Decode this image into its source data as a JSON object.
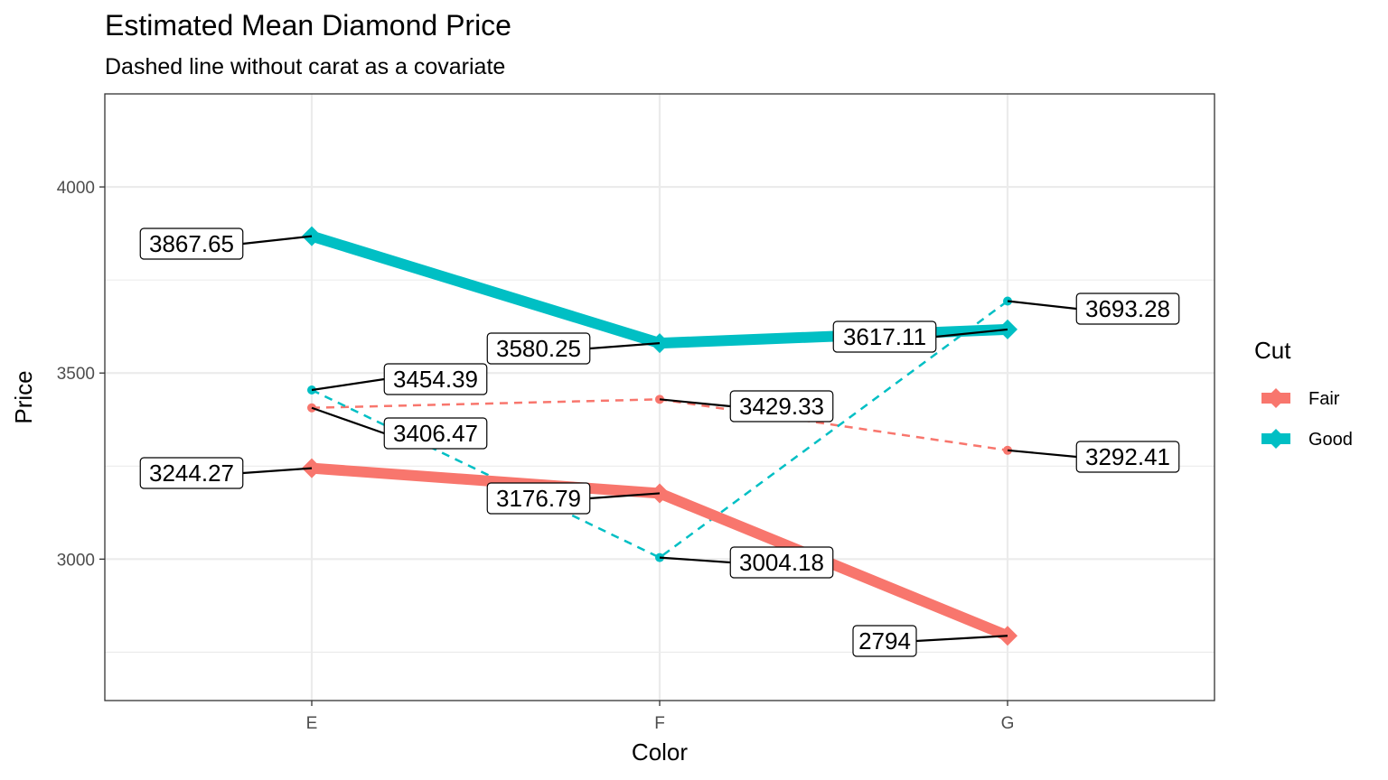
{
  "chart_data": {
    "type": "line",
    "title": "Estimated Mean Diamond Price",
    "subtitle": "Dashed line without carat as a covariate",
    "xlabel": "Color",
    "ylabel": "Price",
    "categories": [
      "E",
      "F",
      "G"
    ],
    "ylim": [
      2620,
      4250
    ],
    "yticks": [
      3000,
      3500,
      4000
    ],
    "grid": true,
    "legend": {
      "title": "Cut",
      "placement": "right",
      "entries": [
        "Fair",
        "Good"
      ]
    },
    "colors": {
      "Fair": "#F8766D",
      "Good": "#00BFC4"
    },
    "series": [
      {
        "name": "Fair",
        "line": "solid",
        "values": [
          3244.27,
          3176.79,
          2794
        ],
        "labels": [
          "3244.27",
          "3176.79",
          "2794"
        ]
      },
      {
        "name": "Good",
        "line": "solid",
        "values": [
          3867.65,
          3580.25,
          3617.11
        ],
        "labels": [
          "3867.65",
          "3580.25",
          "3617.11"
        ]
      },
      {
        "name": "Fair",
        "line": "dashed",
        "values": [
          3406.47,
          3429.33,
          3292.41
        ],
        "labels": [
          "3406.47",
          "3429.33",
          "3292.41"
        ]
      },
      {
        "name": "Good",
        "line": "dashed",
        "values": [
          3454.39,
          3004.18,
          3693.28
        ],
        "labels": [
          "3454.39",
          "3004.18",
          "3693.28"
        ]
      }
    ]
  }
}
